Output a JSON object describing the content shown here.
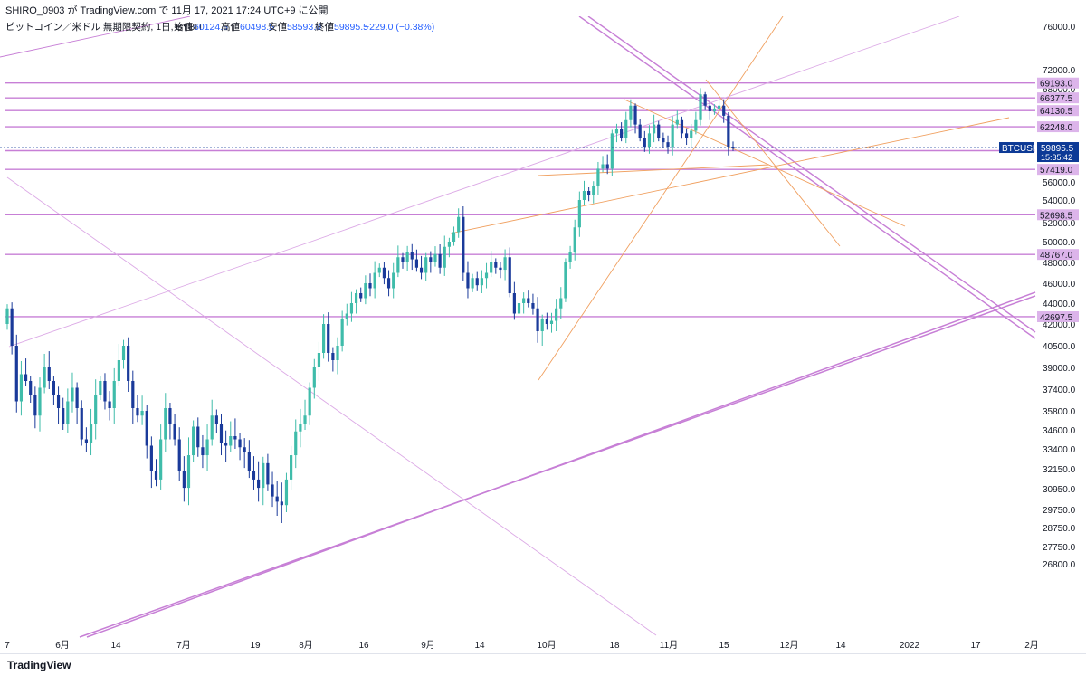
{
  "header": {
    "caption": "SHIRO_0903 が TradingView.com で 11月 17, 2021 17:24 UTC+9 に公開"
  },
  "legend": {
    "symbol": "ビットコイン／米ドル 無期限契約, 1日, BYBIT",
    "open_label": "始値",
    "open": "60124.5",
    "high_label": "高値",
    "high": "60498.5",
    "low_label": "安値",
    "low": "58593.0",
    "close_label": "終値",
    "close": "59895.5",
    "change": "−229.0 (−0.38%)"
  },
  "footer": {
    "logo": "TradingView"
  },
  "colors": {
    "up": "#3fbcaa",
    "down": "#1a3a9a",
    "level": "#c77fd6",
    "trend_orange": "#f0a060",
    "last_price_badge": "#0d3a96"
  },
  "chart_data": {
    "type": "candlestick",
    "symbol": "BTCUSD",
    "timeframe": "1日",
    "last_price": "59895.5",
    "countdown": "15:35:42",
    "price_ticks": [
      "76000.0",
      "72000.0",
      "68000.0",
      "64000.0",
      "60000.0",
      "56000.0",
      "54000.0",
      "52000.0",
      "50000.0",
      "48000.0",
      "46000.0",
      "44000.0",
      "42000.0",
      "40500.0",
      "39000.0",
      "37400.0",
      "35800.0",
      "34600.0",
      "33400.0",
      "32150.0",
      "30950.0",
      "29750.0",
      "28750.0",
      "27750.0",
      "26800.0"
    ],
    "time_ticks": [
      "7",
      "6月",
      "14",
      "7月",
      "19",
      "8月",
      "16",
      "9月",
      "14",
      "10月",
      "18",
      "11月",
      "15",
      "12月",
      "14",
      "2022",
      "17",
      "2月"
    ],
    "horizontal_levels": [
      "69193.0",
      "66377.5",
      "64130.5",
      "62248.0",
      "59538.0",
      "57419.0",
      "52698.5",
      "48767.0",
      "42697.5"
    ],
    "closes": [
      43500,
      40500,
      36500,
      38500,
      38000,
      37000,
      35500,
      37500,
      39000,
      38000,
      37000,
      36000,
      35000,
      36500,
      37500,
      36000,
      34000,
      33800,
      35000,
      37000,
      38000,
      36500,
      36000,
      38000,
      39500,
      40500,
      38000,
      36000,
      35500,
      35800,
      33600,
      32000,
      31500,
      34000,
      36000,
      35000,
      34000,
      32000,
      31000,
      33000,
      34800,
      33500,
      33000,
      34000,
      35500,
      35000,
      33800,
      33600,
      34200,
      34000,
      33500,
      33200,
      32000,
      31500,
      31000,
      32500,
      31200,
      30500,
      30200,
      30000,
      31500,
      33000,
      34500,
      35000,
      35500,
      37500,
      39000,
      40000,
      42000,
      40000,
      39500,
      40500,
      42500,
      43000,
      44000,
      45000,
      44500,
      46000,
      45500,
      47000,
      47500,
      46500,
      45500,
      47000,
      48500,
      48000,
      49000,
      48300,
      47500,
      47000,
      48500,
      48000,
      48800,
      47500,
      49500,
      50000,
      51000,
      52500,
      47000,
      45500,
      46500,
      45800,
      46500,
      47000,
      48000,
      47500,
      47300,
      48500,
      45000,
      43000,
      44000,
      44500,
      44000,
      43500,
      41500,
      42500,
      42000,
      42300,
      43500,
      44500,
      48000,
      49000,
      51500,
      54000,
      55000,
      54500,
      55500,
      57500,
      58000,
      57500,
      61500,
      62000,
      61000,
      63000,
      65000,
      62500,
      61000,
      60000,
      61500,
      62500,
      61000,
      60500,
      60000,
      62500,
      63000,
      61500,
      61000,
      61800,
      63000,
      67000,
      65000,
      64000,
      64500,
      65000,
      63500,
      60000,
      59895
    ]
  }
}
